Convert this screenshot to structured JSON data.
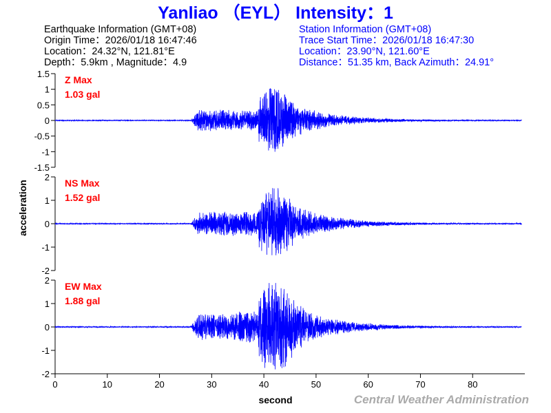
{
  "header": {
    "title": "Yanliao （EYL） Intensity：1",
    "earthquake": {
      "heading": "Earthquake Information (GMT+08)",
      "origin_time": "Origin Time：2026/01/18 16:47:46",
      "location": "Location：24.32°N, 121.81°E",
      "depth_magnitude": "Depth：5.9km , Magnitude：4.9"
    },
    "station": {
      "heading": "Station Information (GMT+08)",
      "trace_start": "Trace Start Time：2026/01/18 16:47:30",
      "location": "Location：23.90°N, 121.60°E",
      "distance": "Distance：51.35 km, Back Azimuth：24.91°"
    }
  },
  "footer": {
    "credit": "Central Weather Administration"
  },
  "colors": {
    "title": "#0000ff",
    "trace": "#0000ff",
    "max_label": "#ff0000",
    "credit": "#aaaaaa",
    "text": "#000000"
  },
  "chart_data": {
    "type": "line",
    "xlabel": "second",
    "ylabel": "acceleration",
    "xlim": [
      0,
      90
    ],
    "xticks": [
      0,
      10,
      20,
      30,
      40,
      50,
      60,
      70,
      80
    ],
    "sample_rate_hz": 50,
    "grid": false,
    "envelope": {
      "noise_level": 0.015,
      "onset_s": 26,
      "s_arrival_s": 39,
      "peak_s": 42,
      "decay_end_s": 89
    },
    "panels": [
      {
        "name": "Z",
        "max_label": "Z Max",
        "max_value_label": "1.03 gal",
        "peak_abs": 1.03,
        "ylim": [
          -1.5,
          1.5
        ],
        "yticks": [
          -1.5,
          -1,
          -0.5,
          0,
          0.5,
          1,
          1.5
        ],
        "yticklabels": [
          "-1.5",
          "-1",
          "-0.5",
          "0",
          "0.5",
          "1",
          "1.5"
        ]
      },
      {
        "name": "NS",
        "max_label": "NS Max",
        "max_value_label": "1.52 gal",
        "peak_abs": 1.52,
        "ylim": [
          -2,
          2
        ],
        "yticks": [
          -2,
          -1,
          0,
          1,
          2
        ],
        "yticklabels": [
          "-2",
          "-1",
          "0",
          "1",
          "2"
        ]
      },
      {
        "name": "EW",
        "max_label": "EW Max",
        "max_value_label": "1.88 gal",
        "peak_abs": 1.88,
        "ylim": [
          -2,
          2
        ],
        "yticks": [
          -2,
          -1,
          0,
          1,
          2
        ],
        "yticklabels": [
          "-2",
          "-1",
          "0",
          "1",
          "2"
        ]
      }
    ]
  }
}
